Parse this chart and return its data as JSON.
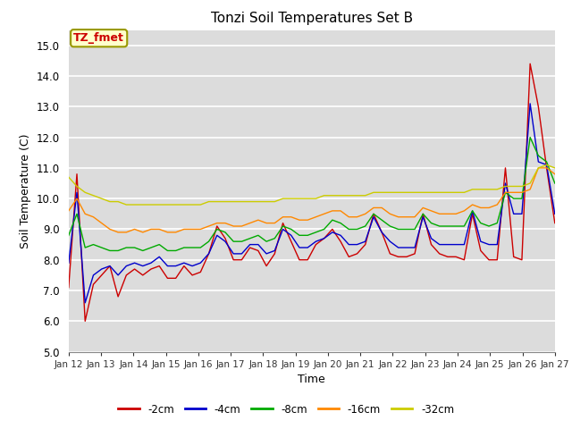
{
  "title": "Tonzi Soil Temperatures Set B",
  "xlabel": "Time",
  "ylabel": "Soil Temperature (C)",
  "ylim": [
    5.0,
    15.5
  ],
  "yticks": [
    5.0,
    6.0,
    7.0,
    8.0,
    9.0,
    10.0,
    11.0,
    12.0,
    13.0,
    14.0,
    15.0
  ],
  "annotation": "TZ_fmet",
  "bg_color": "#dcdcdc",
  "colors": {
    "-2cm": "#cc0000",
    "-4cm": "#0000cc",
    "-8cm": "#00aa00",
    "-16cm": "#ff8800",
    "-32cm": "#cccc00"
  },
  "x_labels": [
    "Jan 12",
    "Jan 13",
    "Jan 14",
    "Jan 15",
    "Jan 16",
    "Jan 17",
    "Jan 18",
    "Jan 19",
    "Jan 20",
    "Jan 21",
    "Jan 22",
    "Jan 23",
    "Jan 24",
    "Jan 25",
    "Jan 26",
    "Jan 27"
  ],
  "series": {
    "-2cm": [
      7.1,
      10.8,
      6.0,
      7.2,
      7.5,
      7.8,
      6.8,
      7.5,
      7.7,
      7.5,
      7.7,
      7.8,
      7.4,
      7.4,
      7.8,
      7.5,
      7.6,
      8.2,
      9.1,
      8.7,
      8.0,
      8.0,
      8.4,
      8.3,
      7.8,
      8.2,
      9.2,
      8.6,
      8.0,
      8.0,
      8.5,
      8.7,
      9.0,
      8.6,
      8.1,
      8.2,
      8.5,
      9.5,
      8.9,
      8.2,
      8.1,
      8.1,
      8.2,
      9.5,
      8.5,
      8.2,
      8.1,
      8.1,
      8.0,
      9.5,
      8.3,
      8.0,
      8.0,
      11.0,
      8.1,
      8.0,
      14.4,
      13.0,
      11.0,
      9.2
    ],
    "-4cm": [
      7.9,
      10.2,
      6.6,
      7.5,
      7.7,
      7.8,
      7.5,
      7.8,
      7.9,
      7.8,
      7.9,
      8.1,
      7.8,
      7.8,
      7.9,
      7.8,
      7.9,
      8.2,
      8.8,
      8.6,
      8.2,
      8.2,
      8.5,
      8.5,
      8.2,
      8.3,
      9.0,
      8.8,
      8.4,
      8.4,
      8.6,
      8.7,
      8.9,
      8.8,
      8.5,
      8.5,
      8.6,
      9.4,
      8.9,
      8.6,
      8.4,
      8.4,
      8.4,
      9.4,
      8.7,
      8.5,
      8.5,
      8.5,
      8.5,
      9.6,
      8.6,
      8.5,
      8.5,
      10.5,
      9.5,
      9.5,
      13.1,
      11.2,
      11.1,
      9.5
    ],
    "-8cm": [
      8.8,
      9.5,
      8.4,
      8.5,
      8.4,
      8.3,
      8.3,
      8.4,
      8.4,
      8.3,
      8.4,
      8.5,
      8.3,
      8.3,
      8.4,
      8.4,
      8.4,
      8.6,
      9.0,
      8.9,
      8.6,
      8.6,
      8.7,
      8.8,
      8.6,
      8.7,
      9.1,
      9.0,
      8.8,
      8.8,
      8.9,
      9.0,
      9.3,
      9.2,
      9.0,
      9.0,
      9.1,
      9.5,
      9.3,
      9.1,
      9.0,
      9.0,
      9.0,
      9.5,
      9.2,
      9.1,
      9.1,
      9.1,
      9.1,
      9.6,
      9.2,
      9.1,
      9.2,
      10.2,
      10.0,
      10.0,
      12.0,
      11.4,
      11.2,
      10.5
    ],
    "-16cm": [
      9.6,
      10.0,
      9.5,
      9.4,
      9.2,
      9.0,
      8.9,
      8.9,
      9.0,
      8.9,
      9.0,
      9.0,
      8.9,
      8.9,
      9.0,
      9.0,
      9.0,
      9.1,
      9.2,
      9.2,
      9.1,
      9.1,
      9.2,
      9.3,
      9.2,
      9.2,
      9.4,
      9.4,
      9.3,
      9.3,
      9.4,
      9.5,
      9.6,
      9.6,
      9.4,
      9.4,
      9.5,
      9.7,
      9.7,
      9.5,
      9.4,
      9.4,
      9.4,
      9.7,
      9.6,
      9.5,
      9.5,
      9.5,
      9.6,
      9.8,
      9.7,
      9.7,
      9.8,
      10.2,
      10.2,
      10.2,
      10.3,
      11.0,
      11.0,
      10.8
    ],
    "-32cm": [
      10.7,
      10.4,
      10.2,
      10.1,
      10.0,
      9.9,
      9.9,
      9.8,
      9.8,
      9.8,
      9.8,
      9.8,
      9.8,
      9.8,
      9.8,
      9.8,
      9.8,
      9.9,
      9.9,
      9.9,
      9.9,
      9.9,
      9.9,
      9.9,
      9.9,
      9.9,
      10.0,
      10.0,
      10.0,
      10.0,
      10.0,
      10.1,
      10.1,
      10.1,
      10.1,
      10.1,
      10.1,
      10.2,
      10.2,
      10.2,
      10.2,
      10.2,
      10.2,
      10.2,
      10.2,
      10.2,
      10.2,
      10.2,
      10.2,
      10.3,
      10.3,
      10.3,
      10.3,
      10.4,
      10.4,
      10.4,
      10.5,
      11.0,
      11.1,
      11.0
    ]
  },
  "legend_items": [
    {
      "-2cm": "#cc0000"
    },
    {
      "-4cm": "#0000cc"
    },
    {
      "-8cm": "#00aa00"
    },
    {
      "-16cm": "#ff8800"
    },
    {
      "-32cm": "#cccc00"
    }
  ]
}
